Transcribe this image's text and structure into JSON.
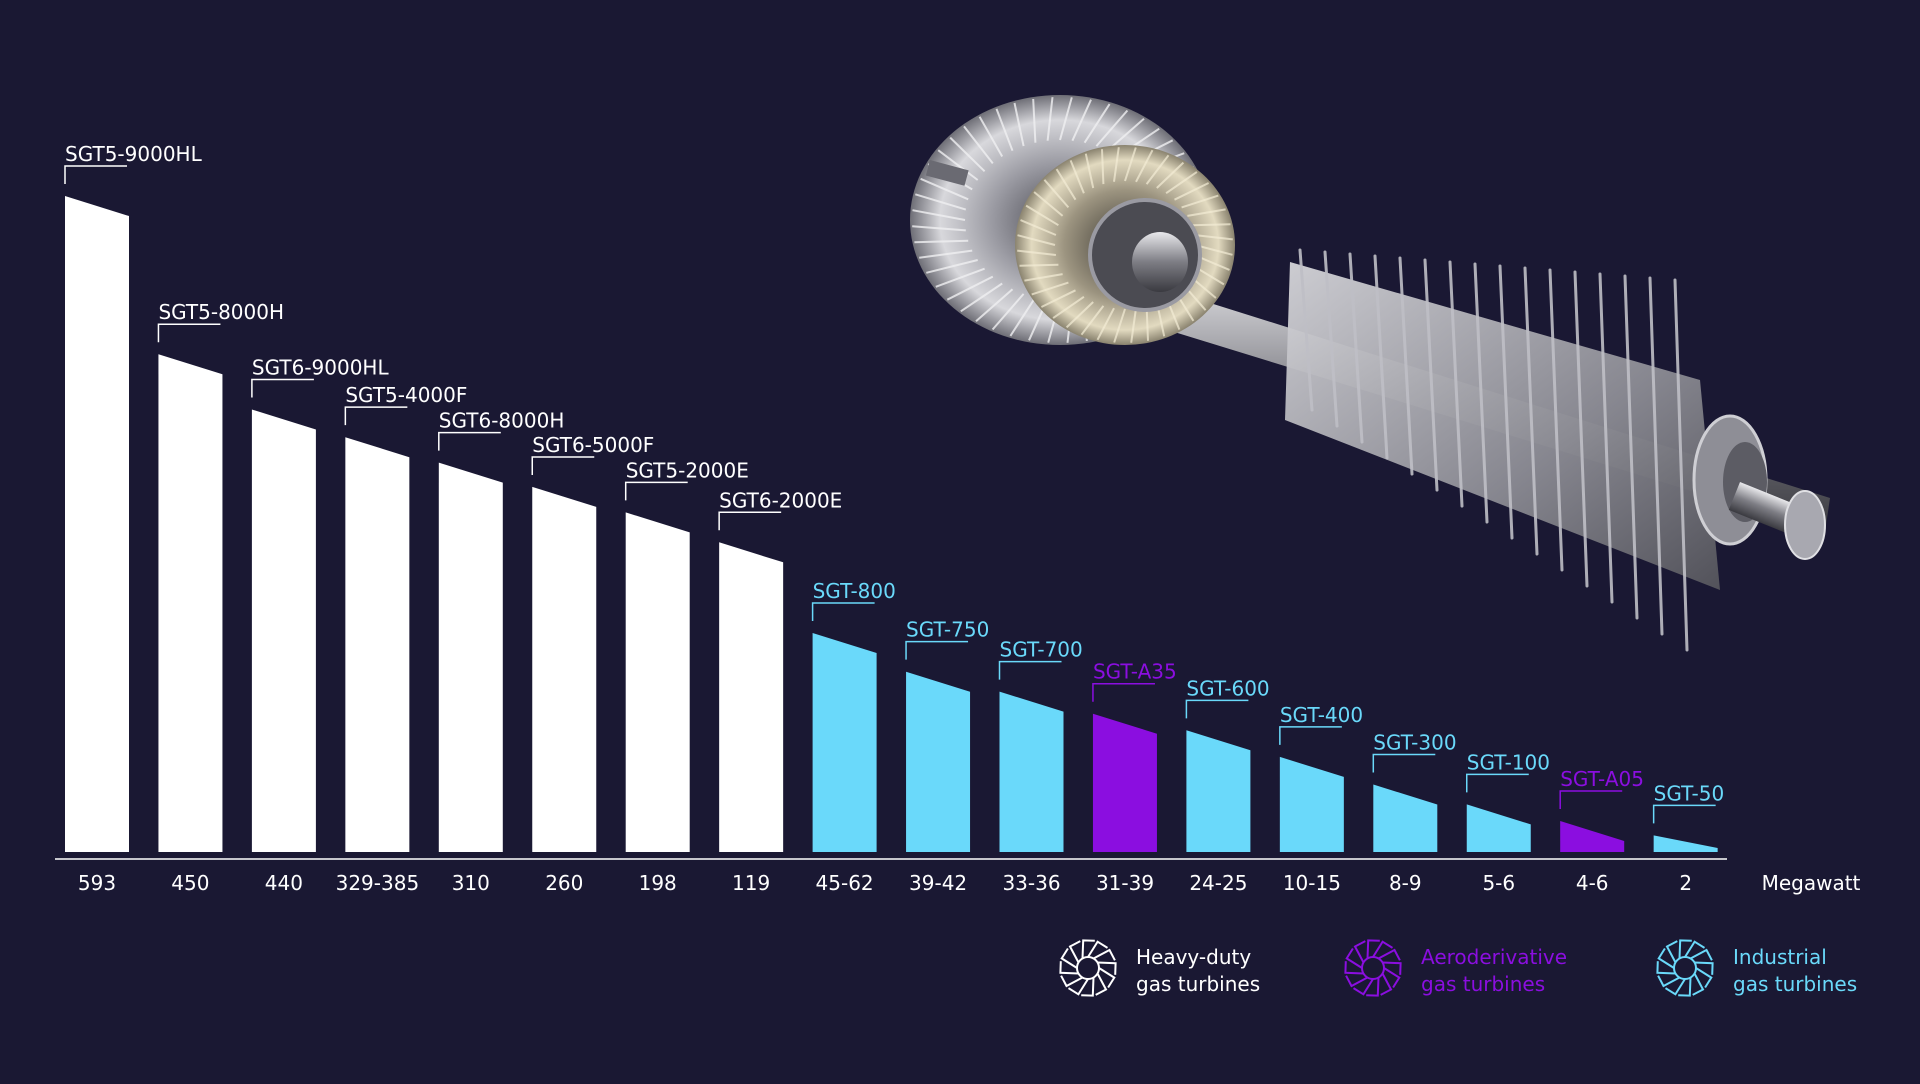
{
  "chart_data": {
    "type": "bar",
    "unit_label": "Megawatt",
    "value_note": "bars ordered by output; ranges shown as tick labels",
    "colors": {
      "background": "#1a1833",
      "heavy": "#ffffff",
      "aero": "#8b0ee0",
      "industrial": "#6ad9fa"
    },
    "bars": [
      {
        "name": "SGT5-9000HL",
        "range": "593",
        "value": 593,
        "category": "heavy"
      },
      {
        "name": "SGT5-8000H",
        "range": "450",
        "value": 450,
        "category": "heavy"
      },
      {
        "name": "SGT6-9000HL",
        "range": "440",
        "value": 400,
        "category": "heavy"
      },
      {
        "name": "SGT5-4000F",
        "range": "329-385",
        "value": 375,
        "category": "heavy"
      },
      {
        "name": "SGT6-8000H",
        "range": "310",
        "value": 352,
        "category": "heavy"
      },
      {
        "name": "SGT6-5000F",
        "range": "260",
        "value": 330,
        "category": "heavy"
      },
      {
        "name": "SGT5-2000E",
        "range": "198",
        "value": 307,
        "category": "heavy"
      },
      {
        "name": "SGT6-2000E",
        "range": "119",
        "value": 280,
        "category": "heavy"
      },
      {
        "name": "SGT-800",
        "range": "45-62",
        "value": 198,
        "category": "industrial"
      },
      {
        "name": "SGT-750",
        "range": "39-42",
        "value": 163,
        "category": "industrial"
      },
      {
        "name": "SGT-700",
        "range": "33-36",
        "value": 145,
        "category": "industrial"
      },
      {
        "name": "SGT-A35",
        "range": "31-39",
        "value": 125,
        "category": "aero"
      },
      {
        "name": "SGT-600",
        "range": "24-25",
        "value": 110,
        "category": "industrial"
      },
      {
        "name": "SGT-400",
        "range": "10-15",
        "value": 86,
        "category": "industrial"
      },
      {
        "name": "SGT-300",
        "range": "8-9",
        "value": 61,
        "category": "industrial"
      },
      {
        "name": "SGT-100",
        "range": "5-6",
        "value": 43,
        "category": "industrial"
      },
      {
        "name": "SGT-A05",
        "range": "4-6",
        "value": 28,
        "category": "aero"
      },
      {
        "name": "SGT-50",
        "range": "2",
        "value": 15,
        "category": "industrial"
      }
    ],
    "legend": [
      {
        "category": "heavy",
        "line1": "Heavy-duty",
        "line2": "gas turbines",
        "icon": "turbine-wheel-icon"
      },
      {
        "category": "aero",
        "line1": "Aeroderivative",
        "line2": "gas turbines",
        "icon": "turbine-wheel-icon"
      },
      {
        "category": "industrial",
        "line1": "Industrial",
        "line2": "gas turbines",
        "icon": "turbine-wheel-icon"
      }
    ]
  },
  "image": {
    "icon": "turbine-rotor-icon"
  }
}
